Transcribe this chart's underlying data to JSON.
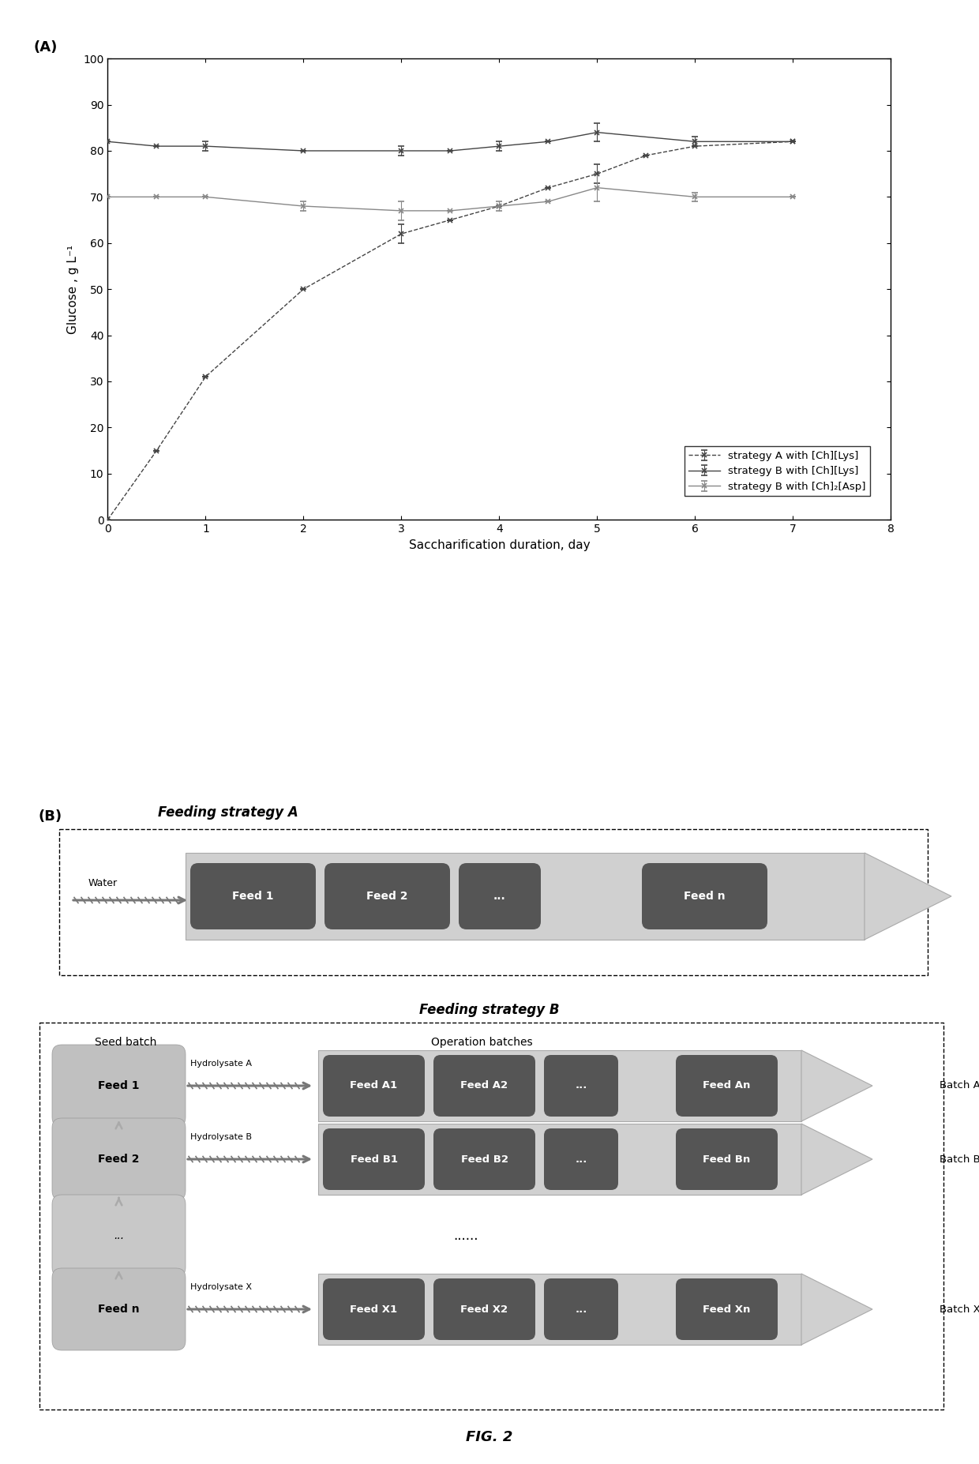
{
  "panel_A_label": "(A)",
  "panel_B_label": "(B)",
  "fig_label": "FIG. 2",
  "xlabel": "Saccharification duration, day",
  "ylabel": "Glucose , g L⁻¹",
  "xlim": [
    0,
    8
  ],
  "ylim": [
    0,
    100
  ],
  "xticks": [
    0,
    1,
    2,
    3,
    4,
    5,
    6,
    7,
    8
  ],
  "yticks": [
    0,
    10,
    20,
    30,
    40,
    50,
    60,
    70,
    80,
    90,
    100
  ],
  "series_A_Lys_x": [
    0,
    0.5,
    1,
    2,
    3,
    3.5,
    4,
    4.5,
    5,
    5.5,
    6,
    7
  ],
  "series_A_Lys_y": [
    0,
    15,
    31,
    50,
    62,
    65,
    68,
    72,
    75,
    79,
    81,
    82
  ],
  "series_A_Lys_yerr": [
    0,
    0,
    0,
    0,
    2,
    0,
    0,
    0,
    2,
    0,
    0,
    0
  ],
  "series_A_Lys_label": "strategy A with [Ch][Lys]",
  "series_B_Lys_x": [
    0,
    0.5,
    1,
    2,
    3,
    3.5,
    4,
    4.5,
    5,
    6,
    7
  ],
  "series_B_Lys_y": [
    82,
    81,
    81,
    80,
    80,
    80,
    81,
    82,
    84,
    82,
    82
  ],
  "series_B_Lys_yerr": [
    0,
    0,
    1,
    0,
    1,
    0,
    1,
    0,
    2,
    1,
    0
  ],
  "series_B_Lys_label": "strategy B with [Ch][Lys]",
  "series_B_Asp_x": [
    0,
    0.5,
    1,
    2,
    3,
    3.5,
    4,
    4.5,
    5,
    6,
    7
  ],
  "series_B_Asp_y": [
    70,
    70,
    70,
    68,
    67,
    67,
    68,
    69,
    72,
    70,
    70
  ],
  "series_B_Asp_yerr": [
    0,
    0,
    0,
    1,
    2,
    0,
    1,
    0,
    3,
    1,
    0
  ],
  "series_B_Asp_label": "strategy B with [Ch]₂[Asp]",
  "strategy_A_title": "Feeding strategy A",
  "strategy_B_title": "Feeding strategy B",
  "seed_batch_label": "Seed batch",
  "operation_batches_label": "Operation batches",
  "water_label": "Water",
  "hydrolysate_labels": [
    "Hydrolysate A",
    "Hydrolysate B",
    "Hydrolysate X"
  ],
  "batch_labels": [
    "Batch A",
    "Batch B",
    "Batch X"
  ],
  "feed_labels_A": [
    "Feed 1",
    "Feed 2",
    "...",
    "Feed n"
  ],
  "feed_labels_B_row1": [
    "Feed A1",
    "Feed A2",
    "...",
    "Feed An"
  ],
  "feed_labels_B_row2": [
    "Feed B1",
    "Feed B2",
    "...",
    "Feed Bn"
  ],
  "feed_labels_B_row4": [
    "Feed X1",
    "Feed X2",
    "...",
    "Feed Xn"
  ],
  "seed_labels": [
    "Feed 1",
    "Feed 2",
    "...",
    "Feed n"
  ],
  "dots_label": "......",
  "dark_box_color": "#555555",
  "mid_box_color": "#888888",
  "light_box_color": "#bbbbbb",
  "lighter_box_color": "#cccccc",
  "arrow_fill_color": "#cccccc",
  "background_color": "#ffffff",
  "line_color_dark": "#444444",
  "line_color_mid": "#888888"
}
